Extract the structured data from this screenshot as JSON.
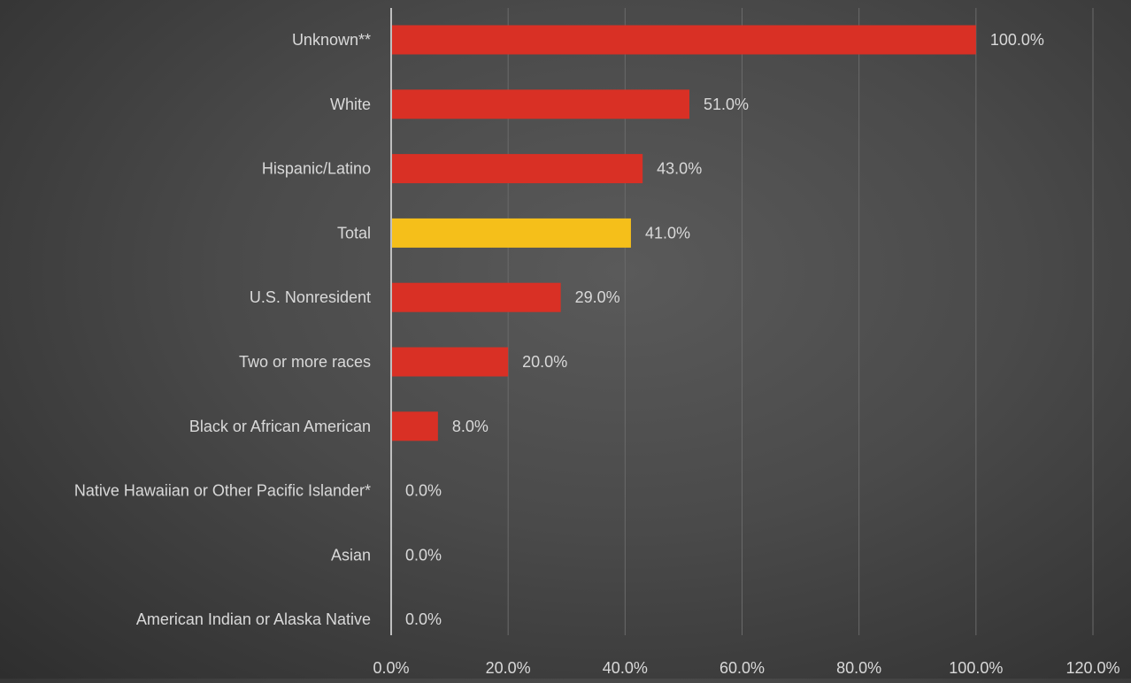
{
  "chart_data": {
    "type": "bar",
    "orientation": "horizontal",
    "title": "",
    "xlabel": "",
    "ylabel": "",
    "xlim": [
      0,
      120
    ],
    "x_tick_values": [
      0,
      20,
      40,
      60,
      80,
      100,
      120
    ],
    "x_tick_labels": [
      "0.0%",
      "20.0%",
      "40.0%",
      "60.0%",
      "80.0%",
      "100.0%",
      "120.0%"
    ],
    "grid": true,
    "legend": "none",
    "categories": [
      "Unknown**",
      "White",
      "Hispanic/Latino",
      "Total",
      "U.S. Nonresident",
      "Two or more races",
      "Black or African American",
      "Native Hawaiian or Other Pacific Islander*",
      "Asian",
      "American Indian or Alaska Native"
    ],
    "values": [
      100.0,
      51.0,
      43.0,
      41.0,
      29.0,
      20.0,
      8.0,
      0.0,
      0.0,
      0.0
    ],
    "data_labels": [
      "100.0%",
      "51.0%",
      "43.0%",
      "41.0%",
      "29.0%",
      "20.0%",
      "8.0%",
      "0.0%",
      "0.0%",
      "0.0%"
    ],
    "bar_colors": [
      "#d93025",
      "#d93025",
      "#d93025",
      "#f5bf1a",
      "#d93025",
      "#d93025",
      "#d93025",
      "#d93025",
      "#d93025",
      "#d93025"
    ],
    "colors": {
      "bar": "#d93025",
      "highlight": "#f5bf1a",
      "text": "#d9d9d9",
      "gridline": "#6a6a6a",
      "axis": "#bfbfbf"
    }
  }
}
